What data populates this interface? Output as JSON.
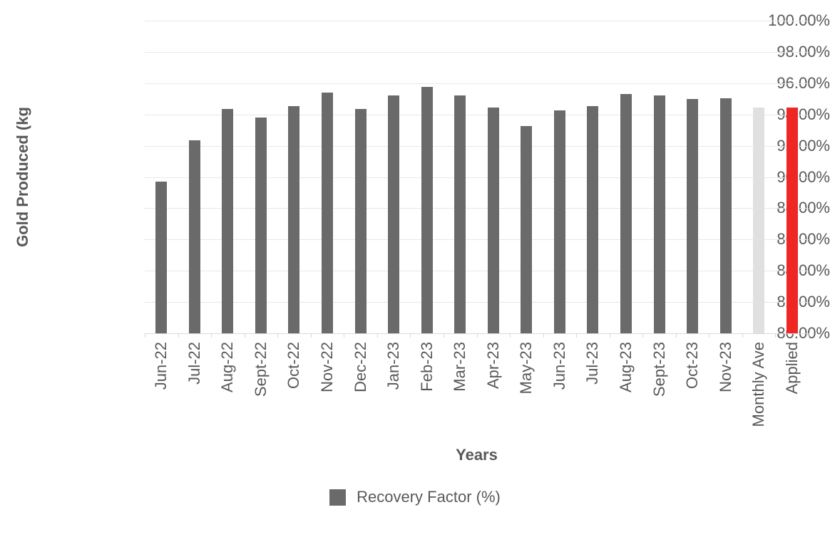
{
  "chart_data": {
    "type": "bar",
    "title": "",
    "xlabel": "Years",
    "ylabel": "Gold Produced (kg",
    "legend": [
      "Recovery Factor (%)"
    ],
    "legend_position": "bottom-center",
    "grid": true,
    "ylim": [
      80,
      100
    ],
    "ytick_step_percent": 2,
    "ytick_labels": [
      "100.00%",
      "98.00%",
      "96.00%",
      "94.00%",
      "92.00%",
      "90.00%",
      "88.00%",
      "86.00%",
      "84.00%",
      "82.00%",
      "80.00%"
    ],
    "categories": [
      "Jun-22",
      "Jul-22",
      "Aug-22",
      "Sept-22",
      "Oct-22",
      "Nov-22",
      "Dec-22",
      "Jan-23",
      "Feb-23",
      "Mar-23",
      "Apr-23",
      "May-23",
      "Jun-23",
      "Jul-23",
      "Aug-23",
      "Sept-23",
      "Oct-23",
      "Nov-23",
      "Monthly Ave",
      "Applied"
    ],
    "series": [
      {
        "name": "Recovery Factor (%)",
        "values": [
          89.7,
          92.35,
          94.35,
          93.8,
          94.55,
          95.4,
          94.35,
          95.2,
          95.75,
          95.2,
          94.45,
          93.25,
          94.25,
          94.55,
          95.3,
          95.2,
          95.0,
          95.05,
          94.45,
          94.45
        ]
      }
    ],
    "bar_colors": {
      "default": "#6A6A6A",
      "Monthly Ave": "#E0E0E0",
      "Applied": "#EE2624"
    }
  },
  "colors": {
    "background": "#FFFFFF",
    "text": "#595959",
    "gridline": "#E8E8E8",
    "axis_line": "#D9D9D9"
  }
}
